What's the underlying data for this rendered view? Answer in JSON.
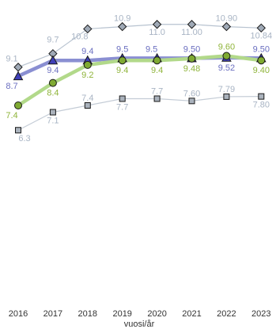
{
  "chart_data": {
    "type": "line",
    "xlabel": "vuosi/år",
    "x": [
      "2016",
      "2017",
      "2018",
      "2019",
      "2020",
      "2021",
      "2022",
      "2023"
    ],
    "grid": false,
    "legend": "none",
    "series": [
      {
        "key": "diamond",
        "values": [
          9.1,
          9.7,
          10.8,
          10.9,
          11.0,
          11.0,
          10.9,
          10.84
        ],
        "labels": [
          "9.1",
          "9.7",
          "10.8",
          "10.9",
          "11.0",
          "11.00",
          "10.90",
          "10.84"
        ],
        "line_color": "#b8c3d0",
        "marker": "diamond",
        "marker_fill": "#9fa9b6",
        "label_color": "#a8b4c4"
      },
      {
        "key": "triangle",
        "values": [
          8.7,
          9.4,
          9.4,
          9.5,
          9.5,
          9.5,
          9.52,
          9.5
        ],
        "labels": [
          "8.7",
          "9.4",
          "9.4",
          "9.5",
          "9.5",
          "9.50",
          "9.52",
          "9.50"
        ],
        "line_color": "#8a8fd2",
        "marker": "triangle",
        "marker_fill": "#3f3fb8",
        "label_color": "#6b6fc0"
      },
      {
        "key": "circle",
        "values": [
          7.4,
          8.4,
          9.2,
          9.4,
          9.4,
          9.48,
          9.6,
          9.4
        ],
        "labels": [
          "7.4",
          "8.4",
          "9.2",
          "9.4",
          "9.4",
          "9.48",
          "9.60",
          "9.40"
        ],
        "line_color": "#b2d98a",
        "marker": "circle",
        "marker_fill": "#7faa32",
        "label_color": "#8fb43a"
      },
      {
        "key": "square",
        "values": [
          6.3,
          7.1,
          7.4,
          7.7,
          7.7,
          7.6,
          7.79,
          7.8
        ],
        "labels": [
          "6.3",
          "7.1",
          "7.4",
          "7.7",
          "7.7",
          "7.60",
          "7.79",
          "7.80"
        ],
        "line_color": "#c4ccd6",
        "marker": "square",
        "marker_fill": "#aab2bc",
        "label_color": "#a8b4c4"
      }
    ]
  }
}
